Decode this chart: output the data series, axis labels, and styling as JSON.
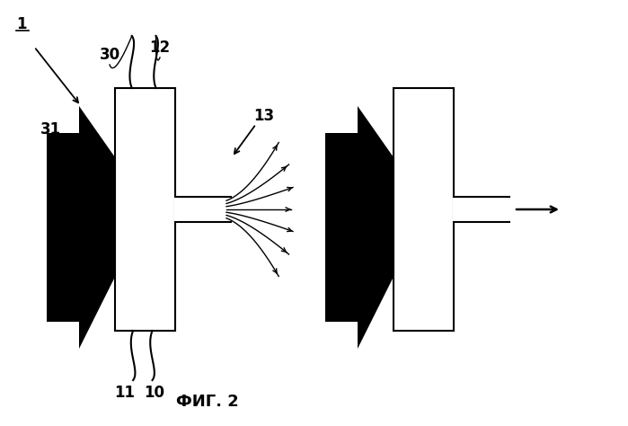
{
  "fig_label": "ФИГ. 2",
  "bg_color": "#ffffff",
  "line_color": "#000000",
  "figsize": [
    6.99,
    4.74
  ],
  "dpi": 100
}
